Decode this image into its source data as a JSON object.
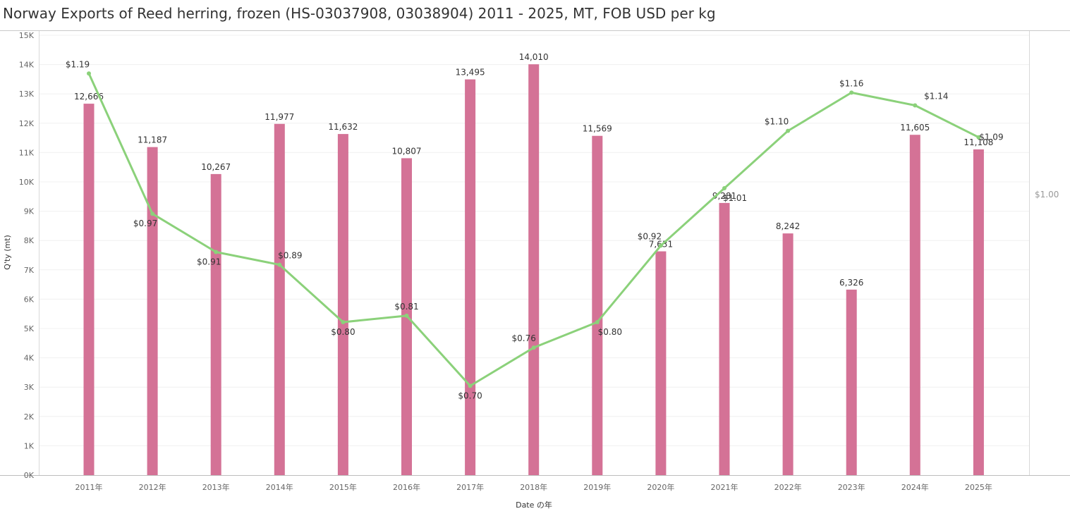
{
  "title": "Norway Exports of Reed herring, frozen (HS-03037908, 03038904) 2011 - 2025, MT, FOB USD per kg",
  "chart_data": {
    "type": "bar",
    "title": "Norway Exports of Reed herring, frozen (HS-03037908, 03038904) 2011 - 2025, MT, FOB USD per kg",
    "xlabel": "Date の年",
    "ylabel": "Q'ty (mt)",
    "categories": [
      "2011年",
      "2012年",
      "2013年",
      "2014年",
      "2015年",
      "2016年",
      "2017年",
      "2018年",
      "2019年",
      "2020年",
      "2021年",
      "2022年",
      "2023年",
      "2024年",
      "2025年"
    ],
    "ylim": [
      0,
      15000
    ],
    "yticks": [
      {
        "value": 0,
        "label": "0K"
      },
      {
        "value": 1000,
        "label": "1K"
      },
      {
        "value": 2000,
        "label": "2K"
      },
      {
        "value": 3000,
        "label": "3K"
      },
      {
        "value": 4000,
        "label": "4K"
      },
      {
        "value": 5000,
        "label": "5K"
      },
      {
        "value": 6000,
        "label": "6K"
      },
      {
        "value": 7000,
        "label": "7K"
      },
      {
        "value": 8000,
        "label": "8K"
      },
      {
        "value": 9000,
        "label": "9K"
      },
      {
        "value": 10000,
        "label": "10K"
      },
      {
        "value": 11000,
        "label": "11K"
      },
      {
        "value": 12000,
        "label": "12K"
      },
      {
        "value": 13000,
        "label": "13K"
      },
      {
        "value": 14000,
        "label": "14K"
      },
      {
        "value": 15000,
        "label": "15K"
      }
    ],
    "right_axis": {
      "ylim": [
        0.56,
        1.25
      ],
      "ticks": [
        {
          "value": 1.0,
          "label": "$1.00"
        }
      ]
    },
    "grid": true,
    "series": [
      {
        "type": "bar",
        "color": "#d47296",
        "values": [
          12666,
          11187,
          10267,
          11977,
          11632,
          10807,
          13495,
          14010,
          11569,
          7631,
          9281,
          8242,
          6326,
          11605,
          11108
        ],
        "labels": [
          "12,666",
          "11,187",
          "10,267",
          "11,977",
          "11,632",
          "10,807",
          "13,495",
          "14,010",
          "11,569",
          "7,631",
          "9,281",
          "8,242",
          "6,326",
          "11,605",
          "11,108"
        ]
      },
      {
        "type": "line",
        "axis": "right",
        "color": "#8bd17a",
        "values": [
          1.19,
          0.97,
          0.91,
          0.89,
          0.8,
          0.81,
          0.7,
          0.76,
          0.8,
          0.92,
          1.01,
          1.1,
          1.16,
          1.14,
          1.09
        ],
        "labels": [
          "$1.19",
          "$0.97",
          "$0.91",
          "$0.89",
          "$0.80",
          "$0.81",
          "$0.70",
          "$0.76",
          "$0.80",
          "$0.92",
          "$1.01",
          "$1.10",
          "$1.16",
          "$1.14",
          "$1.09"
        ]
      }
    ]
  }
}
